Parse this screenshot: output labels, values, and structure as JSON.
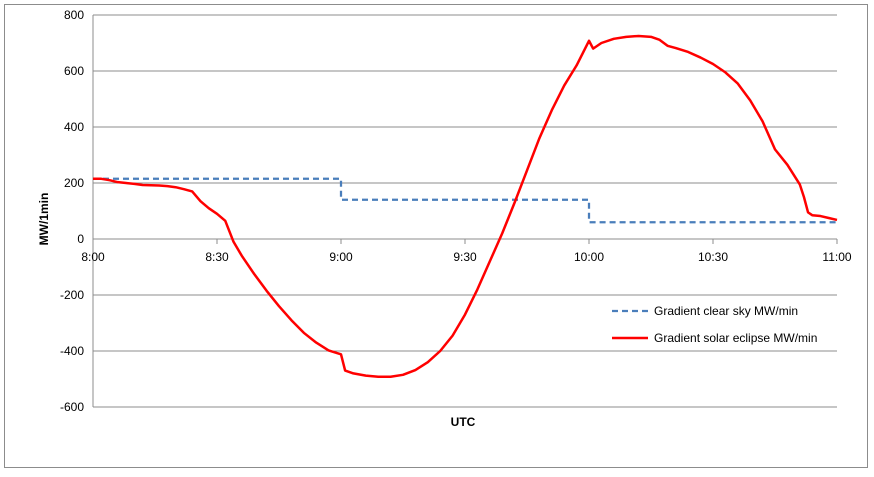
{
  "chart_data": {
    "type": "line",
    "title": "",
    "xlabel": "UTC",
    "ylabel": "MW/1min",
    "x_ticks": [
      "8:00",
      "8:30",
      "9:00",
      "9:30",
      "10:00",
      "10:30",
      "11:00"
    ],
    "y_ticks": [
      "800",
      "600",
      "400",
      "200",
      "0",
      "-200",
      "-400",
      "-600"
    ],
    "xlim": [
      "8:00",
      "11:00"
    ],
    "ylim": [
      -600,
      800
    ],
    "grid": "horizontal",
    "legend_position": "right",
    "series": [
      {
        "name": "Gradient clear sky MW/min",
        "color": "#4a7ebb",
        "style": "dashed",
        "points": [
          [
            "8:00",
            215
          ],
          [
            "9:00",
            215
          ],
          [
            "9:00",
            140
          ],
          [
            "10:00",
            140
          ],
          [
            "10:00",
            60
          ],
          [
            "11:00",
            60
          ]
        ]
      },
      {
        "name": "Gradient solar eclipse MW/min",
        "color": "#ff0000",
        "style": "solid",
        "points": [
          [
            "8:00",
            215
          ],
          [
            "8:02",
            215
          ],
          [
            "8:04",
            210
          ],
          [
            "8:06",
            203
          ],
          [
            "8:08",
            200
          ],
          [
            "8:10",
            197
          ],
          [
            "8:12",
            193
          ],
          [
            "8:14",
            192
          ],
          [
            "8:16",
            191
          ],
          [
            "8:18",
            189
          ],
          [
            "8:20",
            185
          ],
          [
            "8:22",
            178
          ],
          [
            "8:24",
            170
          ],
          [
            "8:26",
            135
          ],
          [
            "8:28",
            110
          ],
          [
            "8:30",
            90
          ],
          [
            "8:32",
            65
          ],
          [
            "8:34",
            -10
          ],
          [
            "8:36",
            -60
          ],
          [
            "8:39",
            -125
          ],
          [
            "8:42",
            -185
          ],
          [
            "8:45",
            -240
          ],
          [
            "8:48",
            -290
          ],
          [
            "8:51",
            -335
          ],
          [
            "8:54",
            -370
          ],
          [
            "8:57",
            -398
          ],
          [
            "9:00",
            -412
          ],
          [
            "9:01",
            -470
          ],
          [
            "9:03",
            -480
          ],
          [
            "9:06",
            -488
          ],
          [
            "9:09",
            -492
          ],
          [
            "9:12",
            -492
          ],
          [
            "9:15",
            -485
          ],
          [
            "9:18",
            -468
          ],
          [
            "9:21",
            -440
          ],
          [
            "9:24",
            -400
          ],
          [
            "9:27",
            -345
          ],
          [
            "9:30",
            -270
          ],
          [
            "9:33",
            -180
          ],
          [
            "9:36",
            -80
          ],
          [
            "9:39",
            20
          ],
          [
            "9:42",
            130
          ],
          [
            "9:45",
            245
          ],
          [
            "9:48",
            360
          ],
          [
            "9:51",
            460
          ],
          [
            "9:54",
            548
          ],
          [
            "9:57",
            620
          ],
          [
            "10:00",
            708
          ],
          [
            "10:01",
            680
          ],
          [
            "10:03",
            700
          ],
          [
            "10:06",
            715
          ],
          [
            "10:09",
            722
          ],
          [
            "10:12",
            725
          ],
          [
            "10:15",
            722
          ],
          [
            "10:17",
            712
          ],
          [
            "10:19",
            690
          ],
          [
            "10:21",
            682
          ],
          [
            "10:24",
            668
          ],
          [
            "10:27",
            648
          ],
          [
            "10:30",
            625
          ],
          [
            "10:33",
            595
          ],
          [
            "10:36",
            555
          ],
          [
            "10:39",
            495
          ],
          [
            "10:42",
            420
          ],
          [
            "10:45",
            320
          ],
          [
            "10:48",
            265
          ],
          [
            "10:51",
            195
          ],
          [
            "10:52",
            150
          ],
          [
            "10:53",
            95
          ],
          [
            "10:54",
            85
          ],
          [
            "10:56",
            82
          ],
          [
            "10:58",
            75
          ],
          [
            "11:00",
            68
          ]
        ]
      }
    ]
  }
}
